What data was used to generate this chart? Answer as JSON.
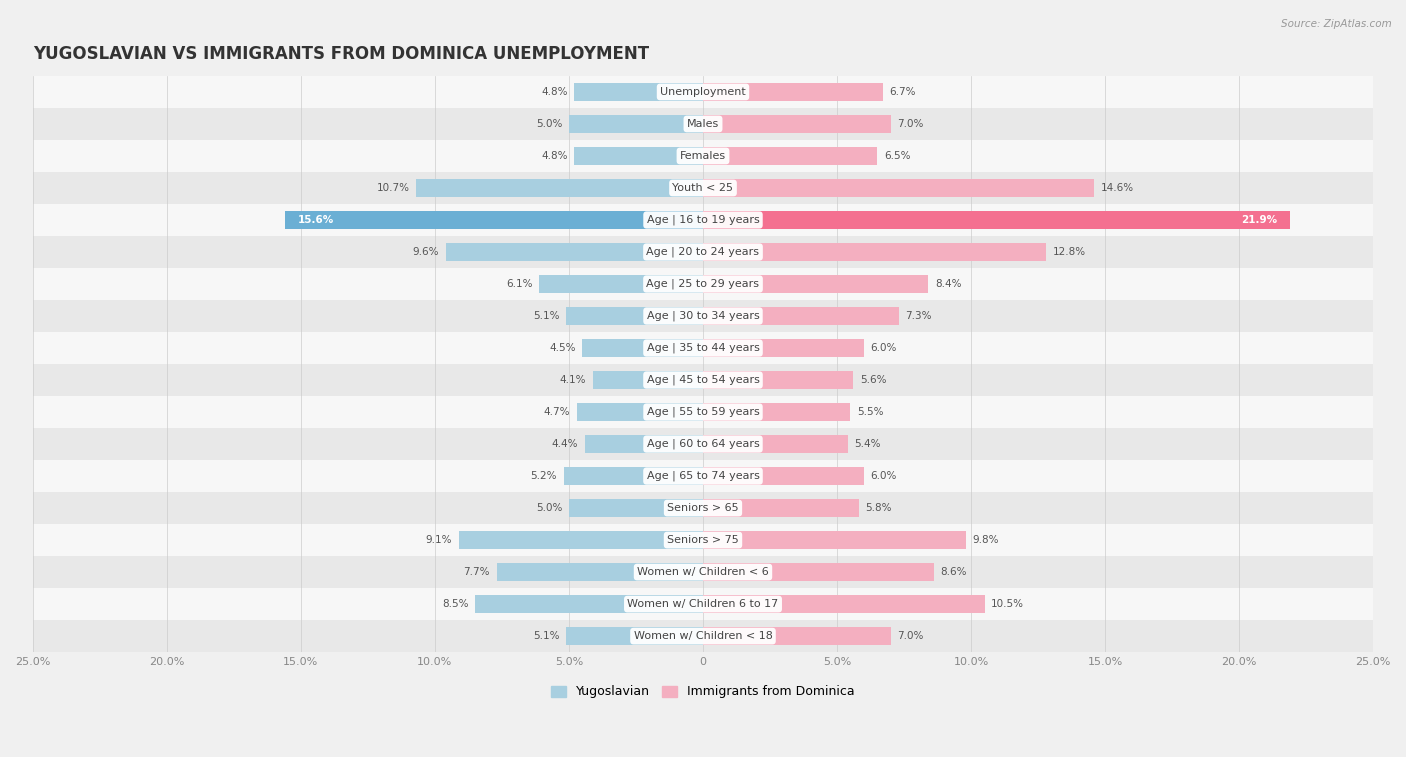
{
  "title": "YUGOSLAVIAN VS IMMIGRANTS FROM DOMINICA UNEMPLOYMENT",
  "source": "Source: ZipAtlas.com",
  "categories": [
    "Unemployment",
    "Males",
    "Females",
    "Youth < 25",
    "Age | 16 to 19 years",
    "Age | 20 to 24 years",
    "Age | 25 to 29 years",
    "Age | 30 to 34 years",
    "Age | 35 to 44 years",
    "Age | 45 to 54 years",
    "Age | 55 to 59 years",
    "Age | 60 to 64 years",
    "Age | 65 to 74 years",
    "Seniors > 65",
    "Seniors > 75",
    "Women w/ Children < 6",
    "Women w/ Children 6 to 17",
    "Women w/ Children < 18"
  ],
  "yugoslavian": [
    4.8,
    5.0,
    4.8,
    10.7,
    15.6,
    9.6,
    6.1,
    5.1,
    4.5,
    4.1,
    4.7,
    4.4,
    5.2,
    5.0,
    9.1,
    7.7,
    8.5,
    5.1
  ],
  "dominica": [
    6.7,
    7.0,
    6.5,
    14.6,
    21.9,
    12.8,
    8.4,
    7.3,
    6.0,
    5.6,
    5.5,
    5.4,
    6.0,
    5.8,
    9.8,
    8.6,
    10.5,
    7.0
  ],
  "color_yugo": "#a8cfe0",
  "color_dom": "#f4afc0",
  "color_yugo_highlight": "#6bafd4",
  "color_dom_highlight": "#f47090",
  "xlim": 25.0,
  "bar_height": 0.55,
  "bg_color": "#f0f0f0",
  "row_color_odd": "#f7f7f7",
  "row_color_even": "#e8e8e8",
  "title_fontsize": 12,
  "label_fontsize": 8,
  "value_fontsize": 7.5,
  "legend_fontsize": 9,
  "tick_fontsize": 8
}
